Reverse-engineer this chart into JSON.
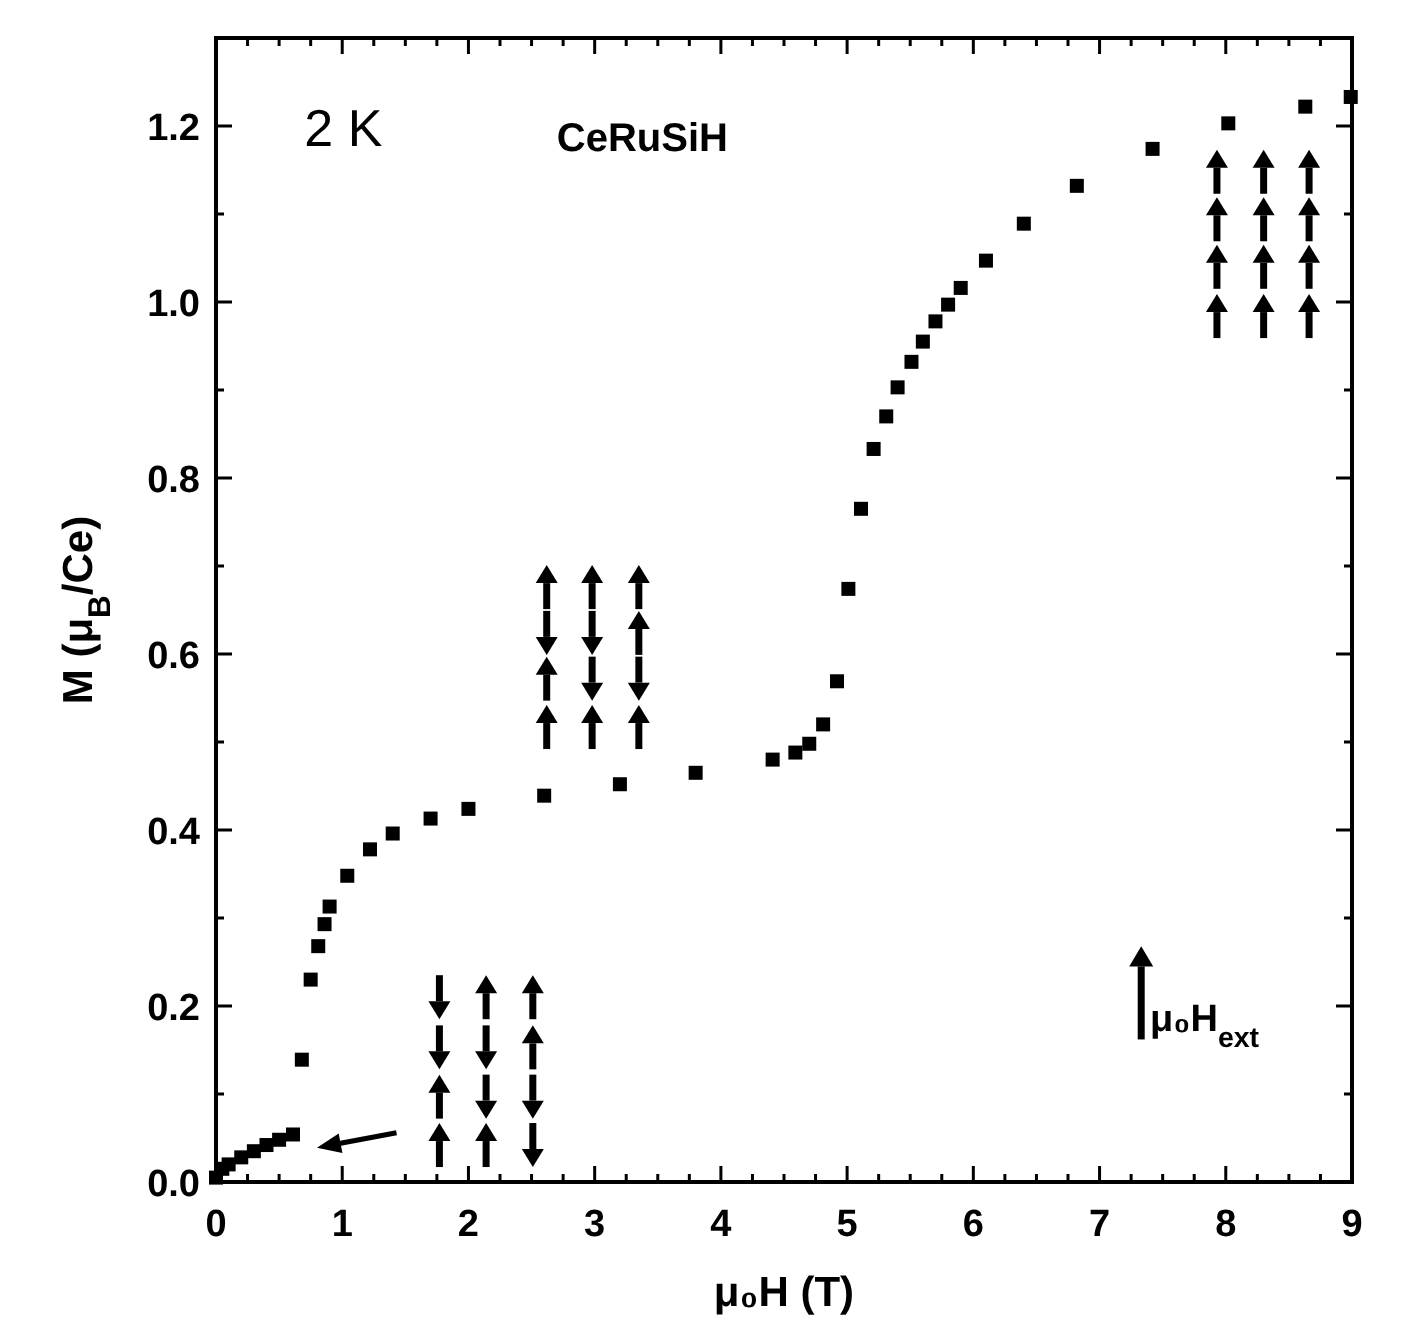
{
  "chart_data": {
    "type": "scatter",
    "xlabel": "μ₀H (T)",
    "ylabel": "M (μ$_{B}$/Ce)",
    "marker": "square",
    "grid": false,
    "xlim": [
      0,
      9
    ],
    "ylim": [
      0,
      1.3
    ],
    "xticks": [
      0,
      {
        "value": 0.25,
        "label": null
      },
      {
        "value": 0.5,
        "label": null
      },
      {
        "value": 0.75,
        "label": null
      },
      1,
      {
        "value": 1.25,
        "label": null
      },
      {
        "value": 1.5,
        "label": null
      },
      {
        "value": 1.75,
        "label": null
      },
      2,
      {
        "value": 2.25,
        "label": null
      },
      {
        "value": 2.5,
        "label": null
      },
      {
        "value": 2.75,
        "label": null
      },
      3,
      {
        "value": 3.25,
        "label": null
      },
      {
        "value": 3.5,
        "label": null
      },
      {
        "value": 3.75,
        "label": null
      },
      4,
      {
        "value": 4.25,
        "label": null
      },
      {
        "value": 4.5,
        "label": null
      },
      {
        "value": 4.75,
        "label": null
      },
      5,
      {
        "value": 5.25,
        "label": null
      },
      {
        "value": 5.5,
        "label": null
      },
      {
        "value": 5.75,
        "label": null
      },
      6,
      {
        "value": 6.25,
        "label": null
      },
      {
        "value": 6.5,
        "label": null
      },
      {
        "value": 6.75,
        "label": null
      },
      7,
      {
        "value": 7.25,
        "label": null
      },
      {
        "value": 7.5,
        "label": null
      },
      {
        "value": 7.75,
        "label": null
      },
      8,
      {
        "value": 8.25,
        "label": null
      },
      {
        "value": 8.5,
        "label": null
      },
      {
        "value": 8.75,
        "label": null
      },
      9
    ],
    "yticks": [
      {
        "value": 0,
        "label": "0.0"
      },
      {
        "value": 0.1,
        "label": null
      },
      {
        "value": 0.2,
        "label": "0.2"
      },
      {
        "value": 0.3,
        "label": null
      },
      {
        "value": 0.4,
        "label": "0.4"
      },
      {
        "value": 0.5,
        "label": null
      },
      {
        "value": 0.6,
        "label": "0.6"
      },
      {
        "value": 0.7,
        "label": null
      },
      {
        "value": 0.8,
        "label": "0.8"
      },
      {
        "value": 0.9,
        "label": null
      },
      {
        "value": 1.0,
        "label": "1.0"
      },
      {
        "value": 1.1,
        "label": null
      },
      {
        "value": 1.2,
        "label": "1.2"
      },
      {
        "value": 1.3,
        "label": null
      }
    ],
    "annotations": [
      "2 K",
      "CeRuSiH",
      "μ₀H$_{ext}$"
    ],
    "series": [
      {
        "color": "#000000",
        "x": [
          0,
          0.05,
          0.1,
          0.2,
          0.3,
          0.4,
          0.5,
          0.61,
          0.68,
          0.75,
          0.81,
          0.86,
          0.9,
          1.04,
          1.22,
          1.4,
          1.7,
          2.0,
          2.6,
          3.2,
          3.8,
          4.41,
          4.59,
          4.7,
          4.81,
          4.92,
          5.01,
          5.11,
          5.21,
          5.31,
          5.4,
          5.51,
          5.6,
          5.7,
          5.8,
          5.9,
          6.1,
          6.4,
          6.82,
          7.42,
          8.02,
          8.63,
          8.99
        ],
        "values": [
          0.005,
          0.015,
          0.02,
          0.028,
          0.035,
          0.042,
          0.048,
          0.054,
          0.139,
          0.23,
          0.268,
          0.293,
          0.313,
          0.348,
          0.378,
          0.396,
          0.413,
          0.424,
          0.439,
          0.452,
          0.465,
          0.48,
          0.488,
          0.498,
          0.52,
          0.569,
          0.674,
          0.765,
          0.833,
          0.87,
          0.903,
          0.932,
          0.955,
          0.978,
          0.997,
          1.016,
          1.047,
          1.089,
          1.132,
          1.174,
          1.203,
          1.222,
          1.233
        ]
      }
    ]
  }
}
